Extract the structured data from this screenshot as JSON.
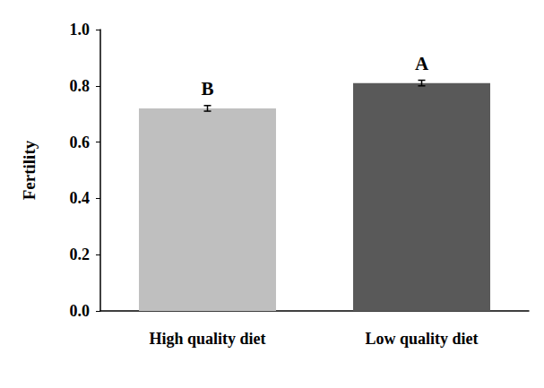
{
  "chart_data": {
    "type": "bar",
    "categories": [
      "High quality diet",
      "Low quality diet"
    ],
    "values": [
      0.72,
      0.81
    ],
    "errors": [
      0.01,
      0.01
    ],
    "annotations": [
      "B",
      "A"
    ],
    "colors": [
      "#bfbfbf",
      "#595959"
    ],
    "y_label": "Fertility",
    "ylim": [
      0,
      1
    ],
    "yticks": [
      {
        "value": 0,
        "label": "0.0"
      },
      0.2,
      0.4,
      0.6,
      0.8,
      {
        "value": 1,
        "label": "1.0"
      }
    ],
    "grid": false
  }
}
